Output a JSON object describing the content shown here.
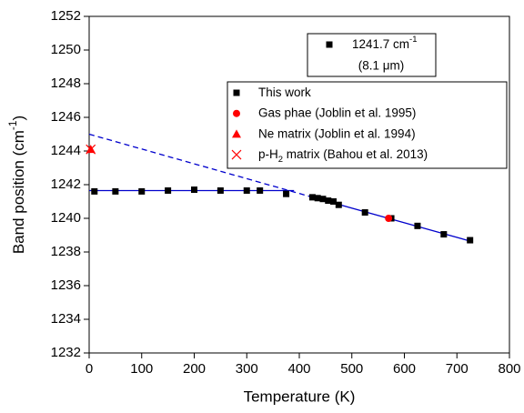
{
  "chart_data": {
    "type": "scatter",
    "x_label": "Temperature (K)",
    "y_label": [
      "Band position (cm",
      "-1",
      ")"
    ],
    "y_label_script": "sup",
    "xlim": [
      0,
      800
    ],
    "xticks": [
      0,
      100,
      200,
      300,
      400,
      500,
      600,
      700,
      800
    ],
    "ylim": [
      1232,
      1252
    ],
    "yticks": [
      1232,
      1234,
      1236,
      1238,
      1240,
      1242,
      1244,
      1246,
      1248,
      1250,
      1252
    ],
    "series": [
      {
        "name": [
          "This work"
        ],
        "marker": "square",
        "color": "#000000",
        "x": [
          10,
          50,
          100,
          150,
          200,
          250,
          300,
          325,
          375,
          425,
          435,
          445,
          455,
          465,
          475,
          525,
          575,
          625,
          675,
          725
        ],
        "values": [
          1241.6,
          1241.6,
          1241.6,
          1241.65,
          1241.7,
          1241.65,
          1241.65,
          1241.65,
          1241.45,
          1241.25,
          1241.2,
          1241.15,
          1241.05,
          1241.0,
          1240.8,
          1240.35,
          1240.0,
          1239.55,
          1239.05,
          1238.7
        ]
      },
      {
        "name": [
          "Gas phae (Joblin et al. 1995)"
        ],
        "marker": "circle",
        "color": "#ff0000",
        "x": [
          570
        ],
        "values": [
          1240.0
        ]
      },
      {
        "name": [
          "Ne matrix (Joblin et al. 1994)"
        ],
        "marker": "triangle",
        "color": "#ff0000",
        "x": [
          3
        ],
        "values": [
          1244.1
        ]
      },
      {
        "name": [
          "p-H",
          "2",
          " matrix (Bahou et al. 2013)"
        ],
        "name_script": "sub",
        "marker": "cross",
        "color": "#ff0000",
        "x": [
          3
        ],
        "values": [
          1244.1
        ]
      }
    ],
    "fit_lines": [
      {
        "color": "#0000cc",
        "dashed": false,
        "x": [
          0,
          390
        ],
        "values": [
          1241.65,
          1241.65
        ]
      },
      {
        "color": "#0000cc",
        "dashed": false,
        "x": [
          420,
          725
        ],
        "values": [
          1241.3,
          1238.65
        ]
      },
      {
        "color": "#0000cc",
        "dashed": true,
        "x": [
          0,
          420
        ],
        "values": [
          1245.0,
          1241.3
        ]
      }
    ],
    "annotation": {
      "marker": "square",
      "color": "#000000",
      "text": [
        "1241.7 cm",
        "-1"
      ],
      "text_script": "sup",
      "subtext": "(8.1 μm)"
    }
  }
}
